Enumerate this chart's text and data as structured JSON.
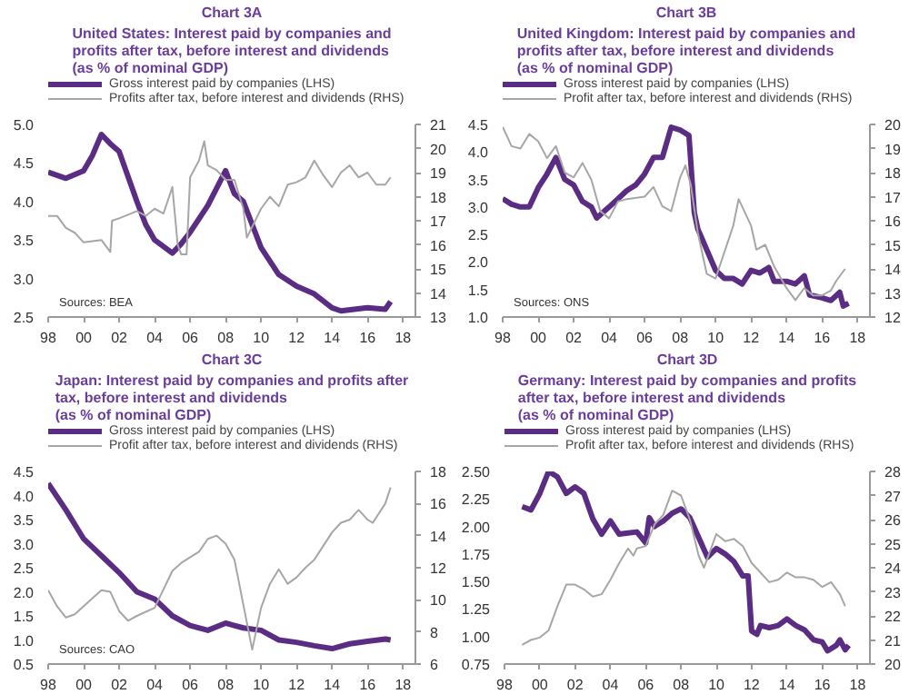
{
  "chart_data": [
    {
      "type": "line",
      "title": "Chart 3A",
      "subtitle": "United States: Interest paid by companies and\nprofits after tax, before interest and dividends\n(as % of nominal GDP)",
      "annotations": [
        "Sources: BEA"
      ],
      "legend": "top",
      "grid": false,
      "marker": "none",
      "line_style": "solid",
      "xlim": [
        1998,
        2018.7
      ],
      "xticks": [
        {
          "value": 1998,
          "label": "98"
        },
        {
          "value": 2000,
          "label": "00"
        },
        {
          "value": 2002,
          "label": "02"
        },
        {
          "value": 2004,
          "label": "04"
        },
        {
          "value": 2006,
          "label": "06"
        },
        {
          "value": 2008,
          "label": "08"
        },
        {
          "value": 2010,
          "label": "10"
        },
        {
          "value": 2012,
          "label": "12"
        },
        {
          "value": 2014,
          "label": "14"
        },
        {
          "value": 2016,
          "label": "16"
        },
        {
          "value": 2018,
          "label": "18"
        }
      ],
      "ylim": [
        2.5,
        5.0
      ],
      "yticks": [
        {
          "value": 2.5,
          "label": "2.5"
        },
        {
          "value": 3.0,
          "label": "3.0"
        },
        {
          "value": 3.5,
          "label": "3.5"
        },
        {
          "value": 4.0,
          "label": "4.0"
        },
        {
          "value": 4.5,
          "label": "4.5"
        },
        {
          "value": 5.0,
          "label": "5.0"
        }
      ],
      "y2lim": [
        13,
        21
      ],
      "y2ticks": [
        13,
        14,
        15,
        16,
        17,
        18,
        19,
        20,
        21
      ],
      "series": [
        {
          "name": "Gross interest paid by companies (LHS)",
          "color": "#5b2c83",
          "x": [
            1998,
            1999,
            2000,
            2000.5,
            2001,
            2001.5,
            2002,
            2003,
            2003.5,
            2004,
            2005,
            2005.5,
            2006,
            2007,
            2008,
            2008.5,
            2009,
            2010,
            2011,
            2012,
            2013,
            2014,
            2014.5,
            2016,
            2017,
            2017.3
          ],
          "values": [
            4.38,
            4.3,
            4.4,
            4.6,
            4.87,
            4.75,
            4.65,
            4.0,
            3.7,
            3.5,
            3.33,
            3.45,
            3.6,
            3.95,
            4.4,
            4.1,
            4.0,
            3.4,
            3.05,
            2.9,
            2.8,
            2.62,
            2.58,
            2.62,
            2.6,
            2.7
          ]
        },
        {
          "name": "Profits after tax, before interest and dividends (RHS)",
          "color": "#a6a6a6",
          "axis": "y2",
          "x": [
            1998,
            1998.5,
            1999,
            1999.5,
            2000,
            2001,
            2001.5,
            2001.6,
            2002,
            2003,
            2003.5,
            2004,
            2004.5,
            2005,
            2005.3,
            2005.5,
            2005.8,
            2006,
            2006.5,
            2006.8,
            2007,
            2007.5,
            2008,
            2008.5,
            2009,
            2009.2,
            2010,
            2010.5,
            2011,
            2011.5,
            2012,
            2012.5,
            2013,
            2013.5,
            2014,
            2014.5,
            2015,
            2015.5,
            2016,
            2016.5,
            2017,
            2017.3
          ],
          "values": [
            17.2,
            17.2,
            16.7,
            16.5,
            16.1,
            16.2,
            15.7,
            17.0,
            17.1,
            17.4,
            17.2,
            17.5,
            17.3,
            18.4,
            16.0,
            15.6,
            15.6,
            18.8,
            19.5,
            20.3,
            19.3,
            19.1,
            18.7,
            18.7,
            17.5,
            16.3,
            17.5,
            18.0,
            17.6,
            18.5,
            18.6,
            18.8,
            19.5,
            18.9,
            18.4,
            19.0,
            19.3,
            18.8,
            19.0,
            18.5,
            18.5,
            18.8
          ]
        }
      ]
    },
    {
      "type": "line",
      "title": "Chart 3B",
      "subtitle": "United Kingdom: Interest paid by companies and\nprofits after tax, before interest and dividends\n(as % of nominal GDP)",
      "annotations": [
        "Sources: ONS"
      ],
      "legend": "top",
      "grid": false,
      "marker": "none",
      "line_style": "solid",
      "xlim": [
        1998,
        2018.7
      ],
      "xticks": [
        {
          "value": 1998,
          "label": "98"
        },
        {
          "value": 2000,
          "label": "00"
        },
        {
          "value": 2002,
          "label": "02"
        },
        {
          "value": 2004,
          "label": "04"
        },
        {
          "value": 2006,
          "label": "06"
        },
        {
          "value": 2008,
          "label": "08"
        },
        {
          "value": 2010,
          "label": "10"
        },
        {
          "value": 2012,
          "label": "12"
        },
        {
          "value": 2014,
          "label": "14"
        },
        {
          "value": 2016,
          "label": "16"
        },
        {
          "value": 2018,
          "label": "18"
        }
      ],
      "ylim": [
        1.0,
        4.5
      ],
      "yticks": [
        {
          "value": 1.0,
          "label": "1.0"
        },
        {
          "value": 1.5,
          "label": "1.5"
        },
        {
          "value": 2.0,
          "label": "2.0"
        },
        {
          "value": 2.5,
          "label": "2.5"
        },
        {
          "value": 3.0,
          "label": "3.0"
        },
        {
          "value": 3.5,
          "label": "3.5"
        },
        {
          "value": 4.0,
          "label": "4.0"
        },
        {
          "value": 4.5,
          "label": "4.5"
        }
      ],
      "y2lim": [
        12,
        20
      ],
      "y2ticks": [
        12,
        13,
        14,
        15,
        16,
        17,
        18,
        19,
        20
      ],
      "series": [
        {
          "name": "Gross interest paid by companies (LHS)",
          "color": "#5b2c83",
          "x": [
            1998,
            1998.5,
            1999,
            1999.5,
            2000,
            2000.5,
            2001,
            2001.5,
            2002,
            2002.5,
            2003,
            2003.3,
            2004,
            2005,
            2005.5,
            2006,
            2006.5,
            2007,
            2007.5,
            2008,
            2008.5,
            2008.8,
            2009,
            2010,
            2010.5,
            2011,
            2011.5,
            2012,
            2012.5,
            2013,
            2013.3,
            2014,
            2014.5,
            2015,
            2015.3,
            2016,
            2016.5,
            2017,
            2017.2,
            2017.5
          ],
          "values": [
            3.15,
            3.05,
            3.0,
            3.0,
            3.35,
            3.6,
            3.9,
            3.5,
            3.4,
            3.1,
            3.0,
            2.8,
            3.0,
            3.3,
            3.4,
            3.6,
            3.9,
            3.9,
            4.45,
            4.4,
            4.3,
            2.9,
            2.6,
            1.85,
            1.7,
            1.7,
            1.6,
            1.85,
            1.8,
            1.9,
            1.65,
            1.65,
            1.6,
            1.75,
            1.4,
            1.35,
            1.3,
            1.45,
            1.2,
            1.25
          ]
        },
        {
          "name": "Profit after tax, before interest and dividends (RHS)",
          "color": "#a6a6a6",
          "axis": "y2",
          "x": [
            1998,
            1998.5,
            1999,
            1999.5,
            2000,
            2000.5,
            2001,
            2001.5,
            2002,
            2002.5,
            2003,
            2003.5,
            2004,
            2004.5,
            2005,
            2006,
            2006.5,
            2007,
            2007.5,
            2008,
            2008.3,
            2008.6,
            2009,
            2009.5,
            2010,
            2011,
            2011.3,
            2012,
            2012.3,
            2012.8,
            2013.3,
            2014,
            2014.5,
            2015,
            2015.5,
            2016,
            2016.5,
            2016.8,
            2017.3
          ],
          "values": [
            19.9,
            19.1,
            19.0,
            19.6,
            19.3,
            18.6,
            19.1,
            18.0,
            17.8,
            18.4,
            17.7,
            16.4,
            16.1,
            16.8,
            16.9,
            17.0,
            17.4,
            16.6,
            16.4,
            17.8,
            18.3,
            17.5,
            15.5,
            13.8,
            13.6,
            15.8,
            16.9,
            15.8,
            14.8,
            15.0,
            14.1,
            13.2,
            12.7,
            13.2,
            12.9,
            12.9,
            13.1,
            13.5,
            14.0
          ]
        }
      ]
    },
    {
      "type": "line",
      "title": "Chart 3C",
      "subtitle": "Japan: Interest paid by companies and profits after\ntax, before interest and dividends\n(as % of nominal GDP)",
      "annotations": [
        "Sources: CAO"
      ],
      "legend": "top",
      "grid": false,
      "marker": "none",
      "line_style": "solid",
      "xlim": [
        1998,
        2018.7
      ],
      "xticks": [
        {
          "value": 1998,
          "label": "98"
        },
        {
          "value": 2000,
          "label": "00"
        },
        {
          "value": 2002,
          "label": "02"
        },
        {
          "value": 2004,
          "label": "04"
        },
        {
          "value": 2006,
          "label": "06"
        },
        {
          "value": 2008,
          "label": "08"
        },
        {
          "value": 2010,
          "label": "10"
        },
        {
          "value": 2012,
          "label": "12"
        },
        {
          "value": 2014,
          "label": "14"
        },
        {
          "value": 2016,
          "label": "16"
        },
        {
          "value": 2018,
          "label": "18"
        }
      ],
      "ylim": [
        0.5,
        4.5
      ],
      "yticks": [
        {
          "value": 0.5,
          "label": "0.5"
        },
        {
          "value": 1.0,
          "label": "1.0"
        },
        {
          "value": 1.5,
          "label": "1.5"
        },
        {
          "value": 2.0,
          "label": "2.0"
        },
        {
          "value": 2.5,
          "label": "2.5"
        },
        {
          "value": 3.0,
          "label": "3.0"
        },
        {
          "value": 3.5,
          "label": "3.5"
        },
        {
          "value": 4.0,
          "label": "4.0"
        },
        {
          "value": 4.5,
          "label": "4.5"
        }
      ],
      "y2lim": [
        6,
        18
      ],
      "y2ticks": [
        6,
        8,
        10,
        12,
        14,
        16,
        18
      ],
      "series": [
        {
          "name": "Gross interest paid by companies (LHS)",
          "color": "#5b2c83",
          "x": [
            1998,
            1999,
            2000,
            2001,
            2002,
            2003,
            2004,
            2005,
            2006,
            2007,
            2008,
            2009,
            2010,
            2011,
            2012,
            2013,
            2014,
            2015,
            2016,
            2017,
            2017.3
          ],
          "values": [
            4.25,
            3.7,
            3.1,
            2.75,
            2.4,
            2.0,
            1.85,
            1.5,
            1.3,
            1.2,
            1.35,
            1.25,
            1.2,
            1.0,
            0.95,
            0.88,
            0.82,
            0.92,
            0.97,
            1.02,
            1.0
          ]
        },
        {
          "name": "Profit after tax, before interest and dividends (RHS)",
          "color": "#a6a6a6",
          "axis": "y2",
          "x": [
            1998,
            1998.5,
            1999,
            1999.5,
            2000.5,
            2001,
            2001.5,
            2002,
            2002.5,
            2003,
            2004,
            2005,
            2005.5,
            2006.5,
            2007,
            2007.5,
            2008,
            2008.5,
            2009.5,
            2010,
            2010.5,
            2011,
            2011.5,
            2012,
            2012.5,
            2013,
            2014,
            2014.5,
            2015,
            2015.5,
            2016,
            2016.3,
            2017,
            2017.3
          ],
          "values": [
            10.6,
            9.6,
            8.9,
            9.1,
            10.1,
            10.6,
            10.5,
            9.3,
            8.7,
            9.0,
            9.5,
            11.8,
            12.3,
            13.0,
            13.8,
            14.0,
            13.5,
            12.5,
            6.9,
            9.5,
            11.0,
            11.9,
            11.0,
            11.4,
            12.0,
            12.5,
            14.2,
            14.8,
            15.0,
            15.6,
            15.0,
            14.8,
            16.0,
            17.0
          ]
        }
      ]
    },
    {
      "type": "line",
      "title": "Chart 3D",
      "subtitle": "Germany: Interest paid by companies and profits\nafter tax, before interest and dividends\n(as % of nominal GDP)",
      "legend": "top",
      "grid": false,
      "marker": "none",
      "line_style": "solid",
      "xlim": [
        1998,
        2018.7
      ],
      "xticks": [
        {
          "value": 1998,
          "label": "98"
        },
        {
          "value": 2000,
          "label": "00"
        },
        {
          "value": 2002,
          "label": "02"
        },
        {
          "value": 2004,
          "label": "04"
        },
        {
          "value": 2006,
          "label": "06"
        },
        {
          "value": 2008,
          "label": "08"
        },
        {
          "value": 2010,
          "label": "10"
        },
        {
          "value": 2012,
          "label": "12"
        },
        {
          "value": 2014,
          "label": "14"
        },
        {
          "value": 2016,
          "label": "16"
        },
        {
          "value": 2018,
          "label": "18"
        }
      ],
      "ylim": [
        0.75,
        2.5
      ],
      "yticks": [
        {
          "value": 0.75,
          "label": "0.75"
        },
        {
          "value": 1.0,
          "label": "1.00"
        },
        {
          "value": 1.25,
          "label": "1.25"
        },
        {
          "value": 1.5,
          "label": "1.50"
        },
        {
          "value": 1.75,
          "label": "1.75"
        },
        {
          "value": 2.0,
          "label": "2.00"
        },
        {
          "value": 2.25,
          "label": "2.25"
        },
        {
          "value": 2.5,
          "label": "2.50"
        }
      ],
      "y2lim": [
        20,
        28
      ],
      "y2ticks": [
        20,
        21,
        22,
        23,
        24,
        25,
        26,
        27,
        28
      ],
      "series": [
        {
          "name": "Gross interest paid by companies (LHS)",
          "color": "#5b2c83",
          "x": [
            1999,
            1999.5,
            2000,
            2000.5,
            2001,
            2001.5,
            2002,
            2002.5,
            2003,
            2003.5,
            2004,
            2004.5,
            2005,
            2005.5,
            2006,
            2006.2,
            2006.5,
            2007,
            2007.5,
            2008,
            2008.5,
            2009,
            2009.5,
            2010,
            2010.5,
            2011,
            2011.5,
            2011.8,
            2012,
            2012.3,
            2012.5,
            2013,
            2013.5,
            2014,
            2014.5,
            2015,
            2015.5,
            2016,
            2016.3,
            2016.8,
            2017,
            2017.3,
            2017.5
          ],
          "values": [
            2.18,
            2.15,
            2.3,
            2.5,
            2.45,
            2.3,
            2.36,
            2.3,
            2.07,
            1.93,
            2.05,
            1.93,
            1.94,
            1.95,
            1.85,
            2.08,
            2.0,
            2.05,
            2.12,
            2.16,
            2.08,
            1.9,
            1.72,
            1.8,
            1.75,
            1.68,
            1.55,
            1.55,
            1.05,
            1.02,
            1.1,
            1.08,
            1.1,
            1.16,
            1.1,
            1.06,
            0.97,
            0.95,
            0.87,
            0.92,
            0.97,
            0.88,
            0.92
          ]
        },
        {
          "name": "Profit after tax, before interest and dividends (RHS)",
          "color": "#a6a6a6",
          "axis": "y2",
          "x": [
            1999,
            1999.5,
            2000,
            2000.5,
            2001,
            2001.5,
            2002,
            2002.5,
            2003,
            2003.5,
            2004,
            2004.5,
            2005,
            2005.3,
            2005.5,
            2006,
            2006.5,
            2007,
            2007.5,
            2008,
            2008.5,
            2009,
            2009.3,
            2009.5,
            2010,
            2010.5,
            2011,
            2011.5,
            2012,
            2012.5,
            2013,
            2013.5,
            2014,
            2014.5,
            2015,
            2015.5,
            2016,
            2016.5,
            2017,
            2017.3
          ],
          "values": [
            20.8,
            21.0,
            21.1,
            21.4,
            22.4,
            23.3,
            23.3,
            23.1,
            22.8,
            22.9,
            23.5,
            24.2,
            24.8,
            24.5,
            24.8,
            24.9,
            25.8,
            26.2,
            27.2,
            27.0,
            26.0,
            24.5,
            24.0,
            24.4,
            25.4,
            25.1,
            25.2,
            24.9,
            24.2,
            23.8,
            23.4,
            23.5,
            23.8,
            23.6,
            23.6,
            23.5,
            23.2,
            23.4,
            22.9,
            22.4
          ]
        }
      ]
    }
  ]
}
